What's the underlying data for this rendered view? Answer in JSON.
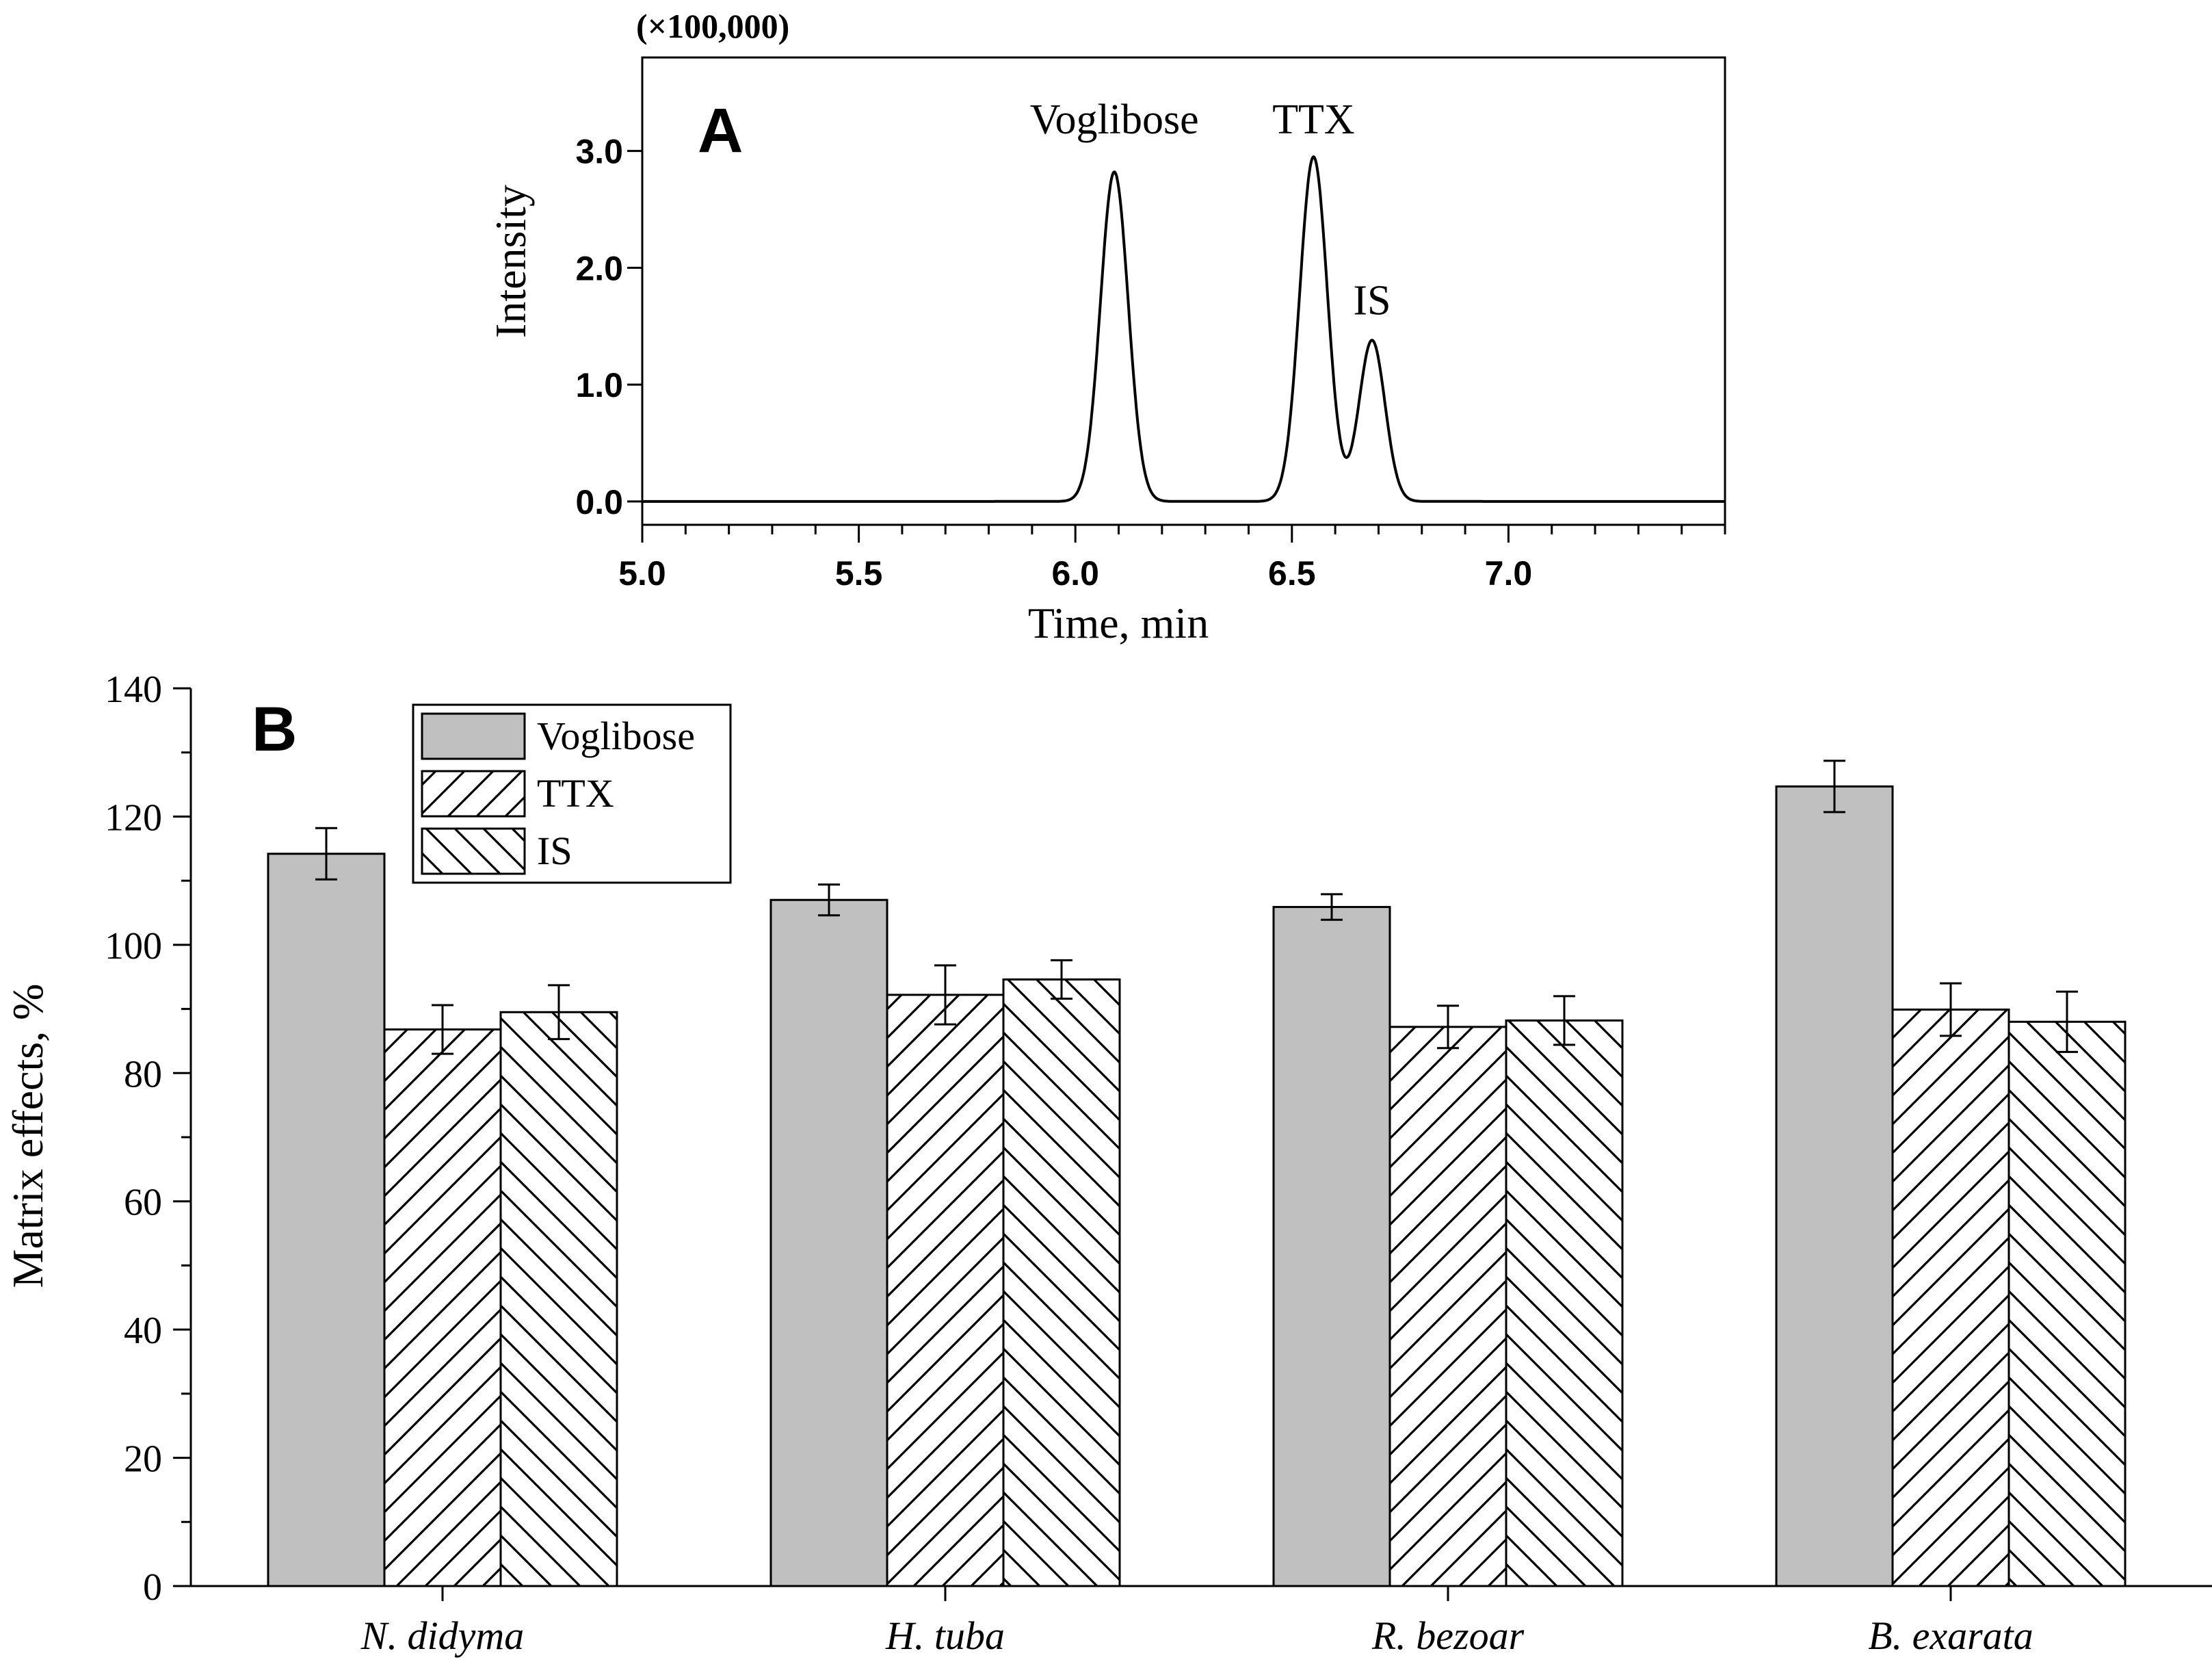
{
  "colors": {
    "axis": "#000000",
    "voglibose_fill": "#c0c0c0",
    "hatch_stroke": "#000000",
    "background": "#ffffff"
  },
  "chart_data": [
    {
      "type": "line",
      "panel_label": "A",
      "multiplier_label": "(×100,000)",
      "xlabel": "Time, min",
      "ylabel": "Intensity",
      "xlim": [
        5.0,
        7.5
      ],
      "ylim": [
        -0.2,
        3.8
      ],
      "xticks": [
        5.0,
        5.5,
        6.0,
        6.5,
        7.0
      ],
      "xtick_labels": [
        "5.0",
        "5.5",
        "6.0",
        "6.5",
        "7.0"
      ],
      "xtick_minor_step": 0.1,
      "yticks": [
        0.0,
        1.0,
        2.0,
        3.0
      ],
      "ytick_labels": [
        "0.0",
        "1.0",
        "2.0",
        "3.0"
      ],
      "series": [
        {
          "peak_center": 6.09,
          "peak_height": 2.82,
          "peak_sigma": 0.032
        },
        {
          "peak_center": 6.55,
          "peak_height": 2.95,
          "peak_sigma": 0.032
        },
        {
          "peak_center": 6.685,
          "peak_height": 1.38,
          "peak_sigma": 0.03
        }
      ],
      "annotations": [
        {
          "text": "Voglibose",
          "x": 6.09,
          "y": 3.15
        },
        {
          "text": "TTX",
          "x": 6.55,
          "y": 3.15
        },
        {
          "text": "IS",
          "x": 6.685,
          "y": 1.6
        }
      ]
    },
    {
      "type": "bar",
      "panel_label": "B",
      "ylabel": "Matrix effects, %",
      "ylim": [
        0,
        140
      ],
      "yticks": [
        0,
        20,
        40,
        60,
        80,
        100,
        120,
        140
      ],
      "ytick_labels": [
        "0",
        "20",
        "40",
        "60",
        "80",
        "100",
        "120",
        "140"
      ],
      "categories": [
        "N. didyma",
        "H. tuba",
        "R. bezoar",
        "B. exarata"
      ],
      "series": [
        {
          "name": "Voglibose",
          "pattern": "solid",
          "values": [
            114.2,
            107.0,
            105.9,
            124.7
          ],
          "errors": [
            4.0,
            2.4,
            2.0,
            4.0
          ]
        },
        {
          "name": "TTX",
          "pattern": "forward",
          "values": [
            86.8,
            92.2,
            87.2,
            89.9
          ],
          "errors": [
            3.8,
            4.6,
            3.3,
            4.1
          ]
        },
        {
          "name": "IS",
          "pattern": "backward",
          "values": [
            89.5,
            94.6,
            88.2,
            88.0
          ],
          "errors": [
            4.2,
            3.0,
            3.8,
            4.7
          ]
        }
      ],
      "legend": "top-left"
    }
  ]
}
